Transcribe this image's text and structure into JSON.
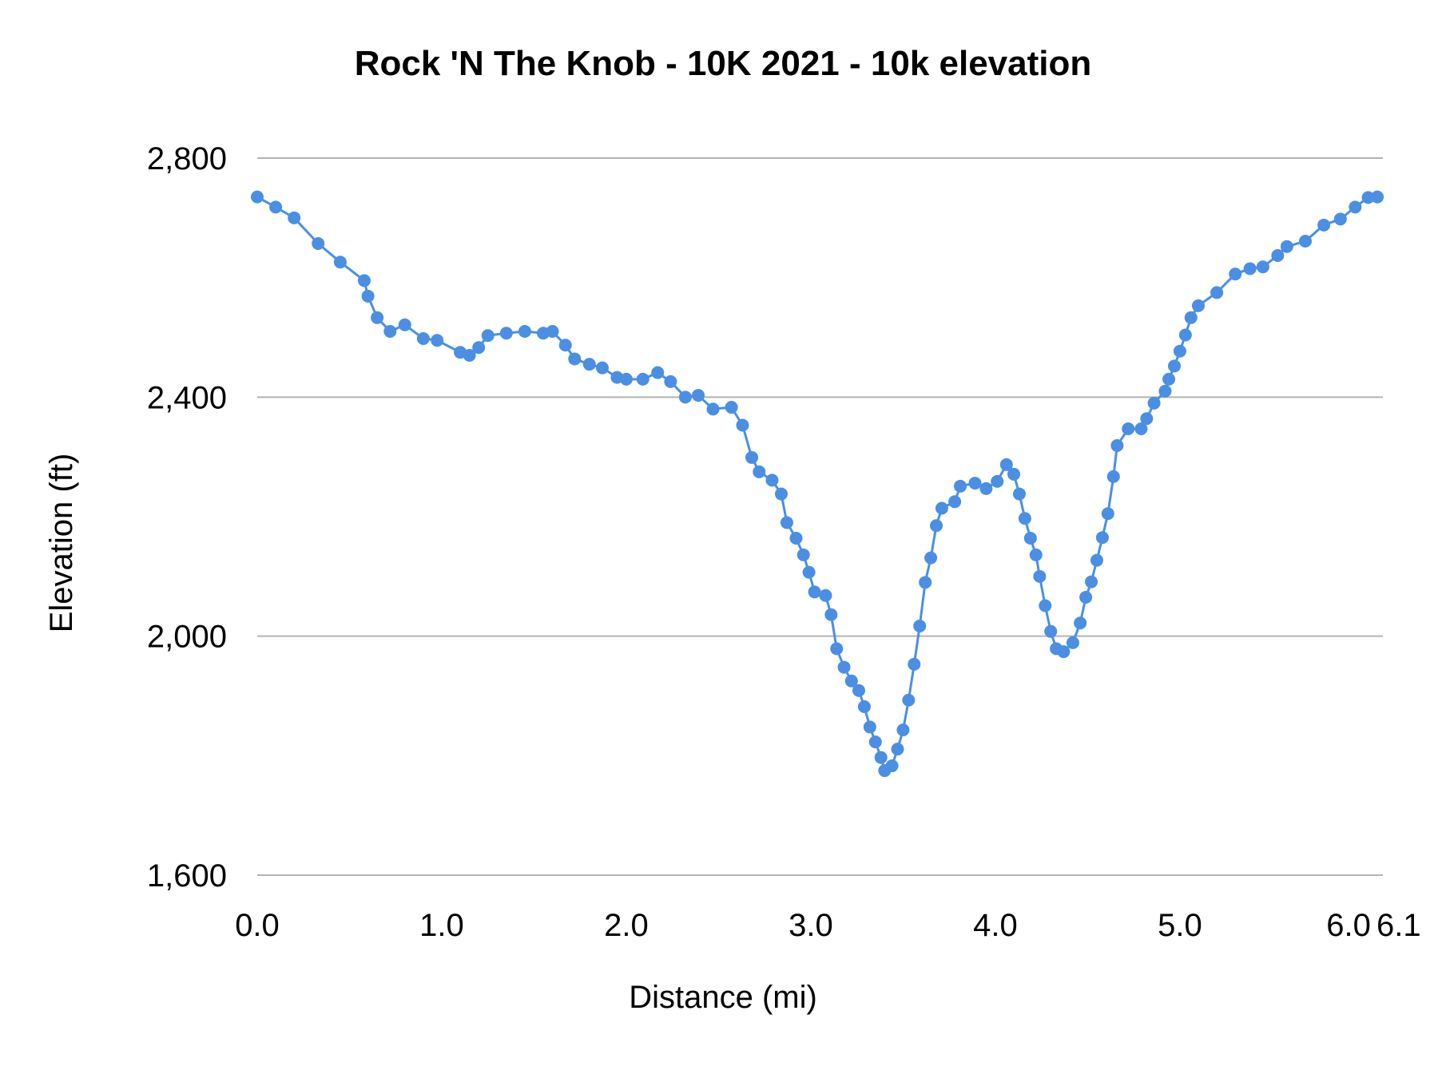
{
  "chart_data": {
    "type": "line",
    "title": "Rock 'N The Knob - 10K 2021 - 10k  elevation",
    "xlabel": "Distance (mi)",
    "ylabel": "Elevation (ft)",
    "xlim": [
      0,
      6.1
    ],
    "ylim": [
      1600,
      2800
    ],
    "x_ticks": [
      "0.0",
      "1.0",
      "2.0",
      "3.0",
      "4.0",
      "5.0",
      "6.0",
      "6.1"
    ],
    "x_tick_values": [
      0,
      1,
      2,
      3,
      4,
      5,
      6,
      6.1
    ],
    "y_ticks": [
      "1,600",
      "2,000",
      "2,400",
      "2,800"
    ],
    "y_tick_values": [
      1600,
      2000,
      2400,
      2800
    ],
    "grid": "horizontal",
    "legend": "none",
    "markers": true,
    "color": "#4a8fe3",
    "series": [
      {
        "x": [
          0,
          0.1,
          0.2,
          0.33,
          0.45,
          0.58,
          0.6,
          0.65,
          0.72,
          0.8,
          0.9,
          0.975,
          1.1,
          1.15,
          1.2,
          1.25,
          1.35,
          1.45,
          1.55,
          1.6,
          1.67,
          1.72,
          1.8,
          1.87,
          1.95,
          2.0,
          2.09,
          2.17,
          2.24,
          2.32,
          2.39,
          2.47,
          2.57,
          2.63,
          2.68,
          2.72,
          2.79,
          2.84,
          2.87,
          2.92,
          2.96,
          2.99,
          3.02,
          3.08,
          3.11,
          3.14,
          3.18,
          3.22,
          3.26,
          3.29,
          3.32,
          3.35,
          3.38,
          3.4,
          3.44,
          3.47,
          3.5,
          3.53,
          3.56,
          3.59,
          3.62,
          3.65,
          3.68,
          3.71,
          3.78,
          3.81,
          3.89,
          3.95,
          4.01,
          4.06,
          4.1,
          4.13,
          4.16,
          4.19,
          4.22,
          4.24,
          4.27,
          4.3,
          4.33,
          4.37,
          4.42,
          4.46,
          4.49,
          4.52,
          4.55,
          4.58,
          4.61,
          4.64,
          4.66,
          4.72,
          4.79,
          4.82,
          4.86,
          4.92,
          4.94,
          4.97,
          5.0,
          5.03,
          5.06,
          5.1,
          5.2,
          5.3,
          5.38,
          5.45,
          5.53,
          5.58,
          5.68,
          5.78,
          5.87,
          5.95,
          6.02,
          6.07
        ],
        "y": [
          2735,
          2718,
          2700,
          2657,
          2626,
          2595,
          2569,
          2533,
          2510,
          2521,
          2498,
          2495,
          2475,
          2470,
          2483,
          2503,
          2507,
          2510,
          2507,
          2510,
          2487,
          2464,
          2455,
          2449,
          2433,
          2430,
          2430,
          2441,
          2426,
          2400,
          2403,
          2380,
          2383,
          2353,
          2299,
          2275,
          2261,
          2238,
          2190,
          2164,
          2136,
          2107,
          2074,
          2068,
          2036,
          1979,
          1948,
          1925,
          1909,
          1882,
          1848,
          1823,
          1797,
          1775,
          1783,
          1811,
          1843,
          1893,
          1953,
          2017,
          2090,
          2131,
          2185,
          2214,
          2225,
          2251,
          2256,
          2247,
          2259,
          2287,
          2271,
          2238,
          2197,
          2164,
          2136,
          2100,
          2051,
          2008,
          1979,
          1974,
          1989,
          2022,
          2065,
          2091,
          2127,
          2165,
          2205,
          2267,
          2319,
          2347,
          2347,
          2364,
          2390,
          2410,
          2430,
          2452,
          2477,
          2504,
          2533,
          2553,
          2575,
          2606,
          2615,
          2618,
          2637,
          2652,
          2661,
          2688,
          2698,
          2718,
          2734,
          2735
        ]
      }
    ]
  }
}
